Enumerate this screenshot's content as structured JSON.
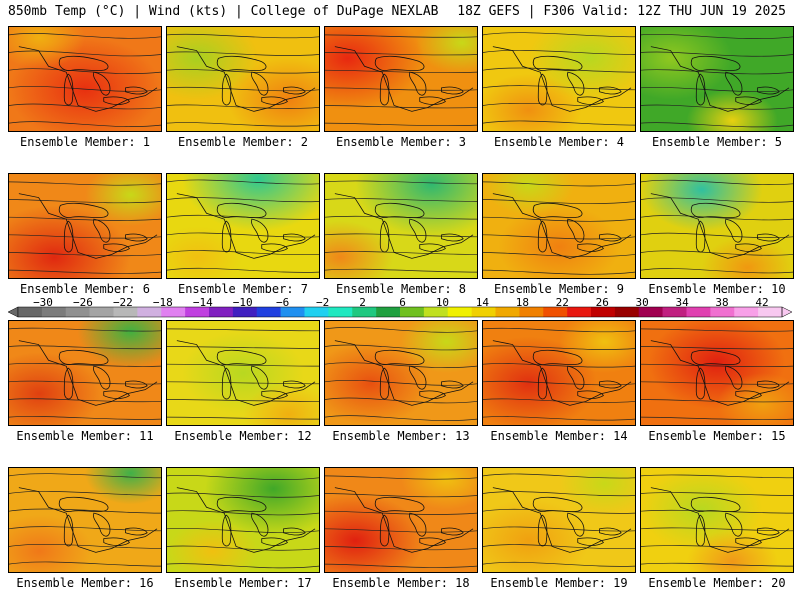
{
  "header": {
    "left": "850mb Temp (°C) | Wind (kts) | College of DuPage NEXLAB",
    "right": "18Z GEFS | F306 Valid: 12Z THU JUN 19 2025"
  },
  "colorbar": {
    "ticks": [
      "−30",
      "−26",
      "−22",
      "−18",
      "−14",
      "−10",
      "−6",
      "−2",
      "2",
      "6",
      "10",
      "14",
      "18",
      "22",
      "26",
      "30",
      "34",
      "38",
      "42"
    ],
    "colors": [
      "#686868",
      "#7c7c7c",
      "#909090",
      "#a4a4a4",
      "#b8b8b8",
      "#d0b0e0",
      "#e080f0",
      "#c040e0",
      "#8020c0",
      "#4020c0",
      "#2040e0",
      "#2090f0",
      "#20d0f0",
      "#20e8c0",
      "#20c880",
      "#20a040",
      "#70c020",
      "#c0e020",
      "#f0f000",
      "#f0d000",
      "#f0a800",
      "#f08000",
      "#f05000",
      "#e81810",
      "#c00000",
      "#980000",
      "#a00050",
      "#c02080",
      "#e040b0",
      "#f070d0",
      "#f8a0e8",
      "#f8c8f0"
    ]
  },
  "members": [
    {
      "label": "Ensemble Member: 1",
      "base": "#f07818",
      "blobs": [
        [
          "#e83010",
          0.5,
          0.6,
          0.5
        ],
        [
          "#f0b010",
          0.2,
          0.1,
          0.3
        ]
      ]
    },
    {
      "label": "Ensemble Member: 2",
      "base": "#f0c010",
      "blobs": [
        [
          "#a8d020",
          0.2,
          0.3,
          0.4
        ],
        [
          "#f08010",
          0.8,
          0.7,
          0.4
        ]
      ]
    },
    {
      "label": "Ensemble Member: 3",
      "base": "#f09010",
      "blobs": [
        [
          "#e82810",
          0.15,
          0.3,
          0.5
        ],
        [
          "#c8d818",
          0.9,
          0.15,
          0.3
        ]
      ]
    },
    {
      "label": "Ensemble Member: 4",
      "base": "#f0c810",
      "blobs": [
        [
          "#b8d820",
          0.7,
          0.3,
          0.4
        ],
        [
          "#f09010",
          0.3,
          0.8,
          0.35
        ]
      ]
    },
    {
      "label": "Ensemble Member: 5",
      "base": "#40a828",
      "blobs": [
        [
          "#90c820",
          0.2,
          0.3,
          0.4
        ],
        [
          "#e8d010",
          0.6,
          0.9,
          0.3
        ]
      ]
    },
    {
      "label": "Ensemble Member: 6",
      "base": "#f08818",
      "blobs": [
        [
          "#e02810",
          0.3,
          0.8,
          0.5
        ],
        [
          "#c8d818",
          0.8,
          0.2,
          0.3
        ]
      ]
    },
    {
      "label": "Ensemble Member: 7",
      "base": "#e8d810",
      "blobs": [
        [
          "#30c890",
          0.6,
          0.05,
          0.5
        ],
        [
          "#f0c010",
          0.2,
          0.8,
          0.3
        ]
      ]
    },
    {
      "label": "Ensemble Member: 8",
      "base": "#d8d818",
      "blobs": [
        [
          "#30b870",
          0.7,
          0.1,
          0.5
        ],
        [
          "#f08818",
          0.1,
          0.8,
          0.35
        ]
      ]
    },
    {
      "label": "Ensemble Member: 9",
      "base": "#f0b010",
      "blobs": [
        [
          "#f08010",
          0.5,
          0.7,
          0.4
        ],
        [
          "#c8d818",
          0.3,
          0.1,
          0.3
        ]
      ]
    },
    {
      "label": "Ensemble Member: 10",
      "base": "#e0d010",
      "blobs": [
        [
          "#30c0a0",
          0.4,
          0.15,
          0.4
        ],
        [
          "#f09810",
          0.7,
          0.9,
          0.3
        ]
      ]
    },
    {
      "label": "Ensemble Member: 11",
      "base": "#f08818",
      "blobs": [
        [
          "#e04010",
          0.2,
          0.7,
          0.4
        ],
        [
          "#40b040",
          0.8,
          0.1,
          0.35
        ]
      ]
    },
    {
      "label": "Ensemble Member: 12",
      "base": "#e8d818",
      "blobs": [
        [
          "#b8d820",
          0.5,
          0.5,
          0.4
        ],
        [
          "#f0b010",
          0.8,
          0.9,
          0.3
        ]
      ]
    },
    {
      "label": "Ensemble Member: 13",
      "base": "#f09818",
      "blobs": [
        [
          "#e85010",
          0.3,
          0.6,
          0.4
        ],
        [
          "#c8d818",
          0.8,
          0.2,
          0.3
        ]
      ]
    },
    {
      "label": "Ensemble Member: 14",
      "base": "#f08010",
      "blobs": [
        [
          "#e03010",
          0.3,
          0.6,
          0.45
        ],
        [
          "#f0c010",
          0.8,
          0.2,
          0.3
        ]
      ]
    },
    {
      "label": "Ensemble Member: 15",
      "base": "#f07010",
      "blobs": [
        [
          "#e02010",
          0.5,
          0.4,
          0.45
        ],
        [
          "#f0a010",
          0.8,
          0.8,
          0.3
        ]
      ]
    },
    {
      "label": "Ensemble Member: 16",
      "base": "#f0a818",
      "blobs": [
        [
          "#40b048",
          0.8,
          0.05,
          0.3
        ],
        [
          "#f07818",
          0.2,
          0.8,
          0.35
        ]
      ]
    },
    {
      "label": "Ensemble Member: 17",
      "base": "#c8d818",
      "blobs": [
        [
          "#40a828",
          0.7,
          0.2,
          0.45
        ],
        [
          "#f0c010",
          0.3,
          0.8,
          0.3
        ]
      ]
    },
    {
      "label": "Ensemble Member: 18",
      "base": "#f08818",
      "blobs": [
        [
          "#e02010",
          0.2,
          0.7,
          0.45
        ],
        [
          "#f0c010",
          0.8,
          0.1,
          0.3
        ]
      ]
    },
    {
      "label": "Ensemble Member: 19",
      "base": "#f0c818",
      "blobs": [
        [
          "#f0a010",
          0.3,
          0.7,
          0.4
        ],
        [
          "#c8d818",
          0.8,
          0.15,
          0.3
        ]
      ]
    },
    {
      "label": "Ensemble Member: 20",
      "base": "#f0d010",
      "blobs": [
        [
          "#b8d820",
          0.4,
          0.4,
          0.4
        ],
        [
          "#f09818",
          0.6,
          0.9,
          0.3
        ]
      ]
    }
  ]
}
